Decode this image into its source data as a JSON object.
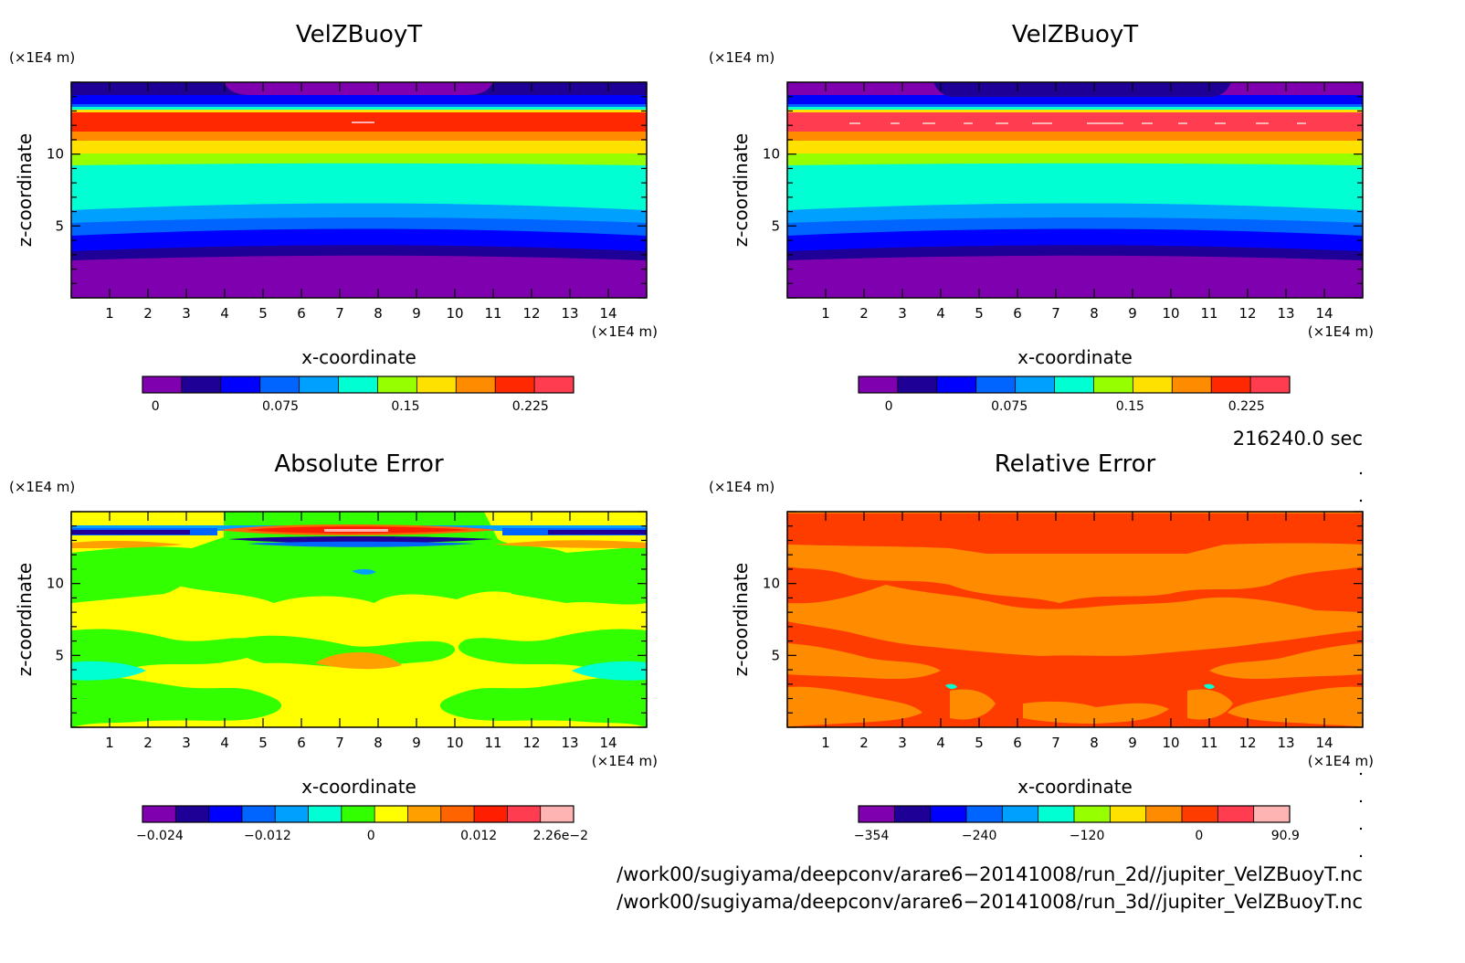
{
  "panels": [
    {
      "title": "VelZBuoyT",
      "xlabel": "x-coordinate",
      "ylabel": "z-coordinate",
      "xunit": "(×1E4 m)",
      "yunit": "(×1E4 m)",
      "xticks": [
        "1",
        "2",
        "3",
        "4",
        "5",
        "6",
        "7",
        "8",
        "9",
        "10",
        "11",
        "12",
        "13",
        "14"
      ],
      "yticks": [
        "5",
        "10"
      ],
      "colorbar": {
        "labels": [
          "0",
          "0.075",
          "0.15",
          "0.225"
        ],
        "colors": [
          "#7F00AF",
          "#1E0096",
          "#0000FF",
          "#0064FF",
          "#00A0FF",
          "#00FFD2",
          "#96FF00",
          "#FFE100",
          "#FF8C00",
          "#FF2800",
          "#FF3C50"
        ]
      }
    },
    {
      "title": "VelZBuoyT",
      "xlabel": "x-coordinate",
      "ylabel": "z-coordinate",
      "xunit": "(×1E4 m)",
      "yunit": "(×1E4 m)",
      "xticks": [
        "1",
        "2",
        "3",
        "4",
        "5",
        "6",
        "7",
        "8",
        "9",
        "10",
        "11",
        "12",
        "13",
        "14"
      ],
      "yticks": [
        "5",
        "10"
      ],
      "colorbar": {
        "labels": [
          "0",
          "0.075",
          "0.15",
          "0.225"
        ],
        "colors": [
          "#7F00AF",
          "#1E0096",
          "#0000FF",
          "#0064FF",
          "#00A0FF",
          "#00FFD2",
          "#96FF00",
          "#FFE100",
          "#FF8C00",
          "#FF2800",
          "#FF3C50"
        ]
      }
    },
    {
      "title": "Absolute Error",
      "xlabel": "x-coordinate",
      "ylabel": "z-coordinate",
      "xunit": "(×1E4 m)",
      "yunit": "(×1E4 m)",
      "xticks": [
        "1",
        "2",
        "3",
        "4",
        "5",
        "6",
        "7",
        "8",
        "9",
        "10",
        "11",
        "12",
        "13",
        "14"
      ],
      "yticks": [
        "5",
        "10"
      ],
      "colorbar": {
        "labels": [
          "−0.024",
          "−0.012",
          "0",
          "0.012",
          "2.26e−2"
        ],
        "colors": [
          "#7F00AF",
          "#1E0096",
          "#0000FF",
          "#0064FF",
          "#00A0FF",
          "#00FFD2",
          "#32FF00",
          "#FFFF00",
          "#FFA000",
          "#FF6400",
          "#FF1E00",
          "#FF3C50",
          "#FFB4B4"
        ]
      }
    },
    {
      "title": "Relative Error",
      "xlabel": "x-coordinate",
      "ylabel": "z-coordinate",
      "xunit": "(×1E4 m)",
      "yunit": "(×1E4 m)",
      "xticks": [
        "1",
        "2",
        "3",
        "4",
        "5",
        "6",
        "7",
        "8",
        "9",
        "10",
        "11",
        "12",
        "13",
        "14"
      ],
      "yticks": [
        "5",
        "10"
      ],
      "colorbar": {
        "labels": [
          "−354",
          "−240",
          "−120",
          "0",
          "90.9"
        ],
        "colors": [
          "#7F00AF",
          "#1E0096",
          "#0000FF",
          "#0064FF",
          "#00A0FF",
          "#00FFD2",
          "#96FF00",
          "#FFE100",
          "#FF8C00",
          "#FF3C00",
          "#FF3C50",
          "#FFB4B4"
        ]
      }
    }
  ],
  "time_label": "216240.0 sec",
  "file_paths": [
    "/work00/sugiyama/deepconv/arare6−20141008/run_2d//jupiter_VelZBuoyT.nc",
    "/work00/sugiyama/deepconv/arare6−20141008/run_3d//jupiter_VelZBuoyT.nc"
  ],
  "chart_data": [
    {
      "type": "heatmap",
      "title": "VelZBuoyT",
      "xlabel": "x-coordinate",
      "ylabel": "z-coordinate",
      "xlim": [
        0,
        15
      ],
      "ylim": [
        0,
        15
      ],
      "colorbar_ticks": [
        0,
        0.075,
        0.15,
        0.225
      ],
      "colorbar_range": [
        -0.0187,
        0.2625
      ],
      "levels": [
        -0.0187,
        0.0,
        0.0187,
        0.0375,
        0.0562,
        0.075,
        0.1125,
        0.15,
        0.1875,
        0.225,
        0.2437,
        0.2625
      ],
      "vertical_profile": [
        {
          "z": [
            0.0,
            2.5
          ],
          "value": -0.01
        },
        {
          "z": [
            2.5,
            3.2
          ],
          "value": 0.008
        },
        {
          "z": [
            3.2,
            4.2
          ],
          "value": 0.03
        },
        {
          "z": [
            4.2,
            5.0
          ],
          "value": 0.05
        },
        {
          "z": [
            5.0,
            5.9
          ],
          "value": 0.065
        },
        {
          "z": [
            5.9,
            9.0
          ],
          "value": 0.09
        },
        {
          "z": [
            9.0,
            9.8
          ],
          "value": 0.13
        },
        {
          "z": [
            9.8,
            10.5
          ],
          "value": 0.17
        },
        {
          "z": [
            10.5,
            11.0
          ],
          "value": 0.2
        },
        {
          "z": [
            11.0,
            12.5
          ],
          "value": 0.235
        },
        {
          "z": [
            12.5,
            12.8
          ],
          "value": 0.15
        },
        {
          "z": [
            12.8,
            13.1
          ],
          "value": 0.05
        },
        {
          "z": [
            13.1,
            14.0
          ],
          "value": 0.01
        },
        {
          "z": [
            14.0,
            15.0
          ],
          "value": -0.01
        }
      ]
    },
    {
      "type": "heatmap",
      "title": "VelZBuoyT",
      "xlabel": "x-coordinate",
      "ylabel": "z-coordinate",
      "xlim": [
        0,
        15
      ],
      "ylim": [
        0,
        15
      ],
      "colorbar_ticks": [
        0,
        0.075,
        0.15,
        0.225
      ],
      "colorbar_range": [
        -0.0187,
        0.2625
      ],
      "levels": [
        -0.0187,
        0.0,
        0.0187,
        0.0375,
        0.0562,
        0.075,
        0.1125,
        0.15,
        0.1875,
        0.225,
        0.2437,
        0.2625
      ],
      "vertical_profile": [
        {
          "z": [
            0.0,
            2.5
          ],
          "value": -0.01
        },
        {
          "z": [
            2.5,
            3.2
          ],
          "value": 0.008
        },
        {
          "z": [
            3.2,
            4.2
          ],
          "value": 0.03
        },
        {
          "z": [
            4.2,
            5.0
          ],
          "value": 0.05
        },
        {
          "z": [
            5.0,
            5.9
          ],
          "value": 0.065
        },
        {
          "z": [
            5.9,
            9.0
          ],
          "value": 0.09
        },
        {
          "z": [
            9.0,
            9.8
          ],
          "value": 0.13
        },
        {
          "z": [
            9.8,
            10.5
          ],
          "value": 0.17
        },
        {
          "z": [
            10.5,
            11.0
          ],
          "value": 0.2
        },
        {
          "z": [
            11.0,
            12.5
          ],
          "value": 0.235
        },
        {
          "z": [
            12.5,
            12.8
          ],
          "value": 0.15
        },
        {
          "z": [
            12.8,
            13.1
          ],
          "value": 0.05
        },
        {
          "z": [
            13.1,
            14.0
          ],
          "value": 0.01
        },
        {
          "z": [
            14.0,
            15.0
          ],
          "value": 0.005
        }
      ]
    },
    {
      "type": "heatmap",
      "title": "Absolute Error",
      "xlabel": "x-coordinate",
      "ylabel": "z-coordinate",
      "xlim": [
        0,
        15
      ],
      "ylim": [
        0,
        15
      ],
      "colorbar_ticks": [
        -0.024,
        -0.012,
        0,
        0.012,
        0.0226
      ],
      "colorbar_range": [
        -0.03,
        0.0226
      ],
      "dominant_values": [
        "0 to 0.004 (yellow)",
        "-0.004 to 0 (green)"
      ],
      "extremes_near_z": 13.5
    },
    {
      "type": "heatmap",
      "title": "Relative Error",
      "xlabel": "x-coordinate",
      "ylabel": "z-coordinate",
      "xlim": [
        0,
        15
      ],
      "ylim": [
        0,
        15
      ],
      "colorbar_ticks": [
        -354,
        -240,
        -120,
        0,
        90.9
      ],
      "colorbar_range": [
        -354,
        90.9
      ],
      "dominant_values": [
        "0 to 30 (orange-red)",
        "-30 to 0 (orange)"
      ]
    }
  ]
}
